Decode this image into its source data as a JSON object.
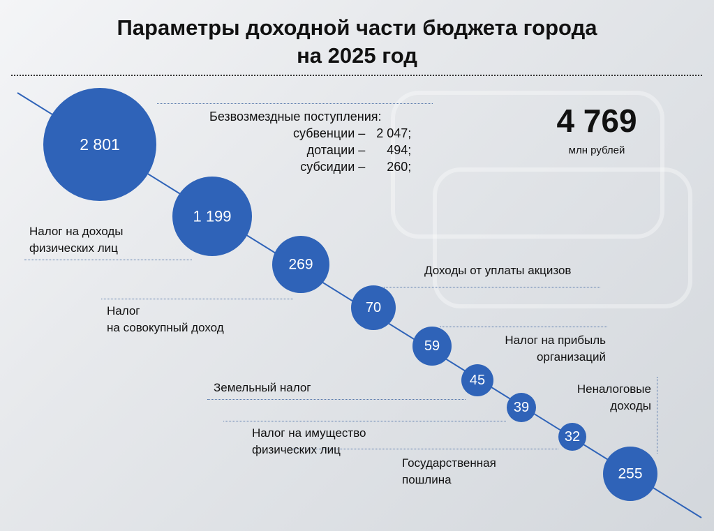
{
  "title": {
    "line1": "Параметры доходной части бюджета  города",
    "line2": "на 2025 год"
  },
  "total": {
    "value": "4 769",
    "unit": "млн рублей"
  },
  "grants": {
    "heading": "Безвозмездные поступления:",
    "items": [
      {
        "name": "субвенции –",
        "value": "2 047;"
      },
      {
        "name": "дотации –",
        "value": "494;"
      },
      {
        "name": "субсидии –",
        "value": "260;"
      }
    ]
  },
  "chart_data": {
    "type": "bubble",
    "unit": "млн рублей",
    "items": [
      {
        "value": 2801,
        "display": "2 801",
        "label": ""
      },
      {
        "value": 1199,
        "display": "1 199",
        "label": "Налог на доходы физических лиц"
      },
      {
        "value": 269,
        "display": "269",
        "label": "Налог на совокупный доход"
      },
      {
        "value": 70,
        "display": "70",
        "label": "Доходы от уплаты акцизов"
      },
      {
        "value": 59,
        "display": "59",
        "label": "Налог на прибыль организаций"
      },
      {
        "value": 45,
        "display": "45",
        "label": "Земельный налог"
      },
      {
        "value": 39,
        "display": "39",
        "label": "Налог на имущество физических лиц"
      },
      {
        "value": 32,
        "display": "32",
        "label": "Государственная пошлина"
      },
      {
        "value": 255,
        "display": "255",
        "label": "Неналоговые доходы"
      }
    ]
  },
  "labels": {
    "ndfl": [
      "Налог на доходы",
      "физических лиц"
    ],
    "usn": [
      "Налог",
      "на совокупный доход"
    ],
    "excise": [
      "Доходы от уплаты акцизов"
    ],
    "profit": [
      "Налог на прибыль",
      "организаций"
    ],
    "land": [
      "Земельный налог"
    ],
    "property": [
      "Налог на имущество",
      "физических лиц"
    ],
    "duty": [
      "Государственная",
      "пошлина"
    ],
    "nontax": [
      "Неналоговые",
      "доходы"
    ]
  },
  "colors": {
    "bubble": "#2f63b8",
    "line": "#2f63b8"
  }
}
